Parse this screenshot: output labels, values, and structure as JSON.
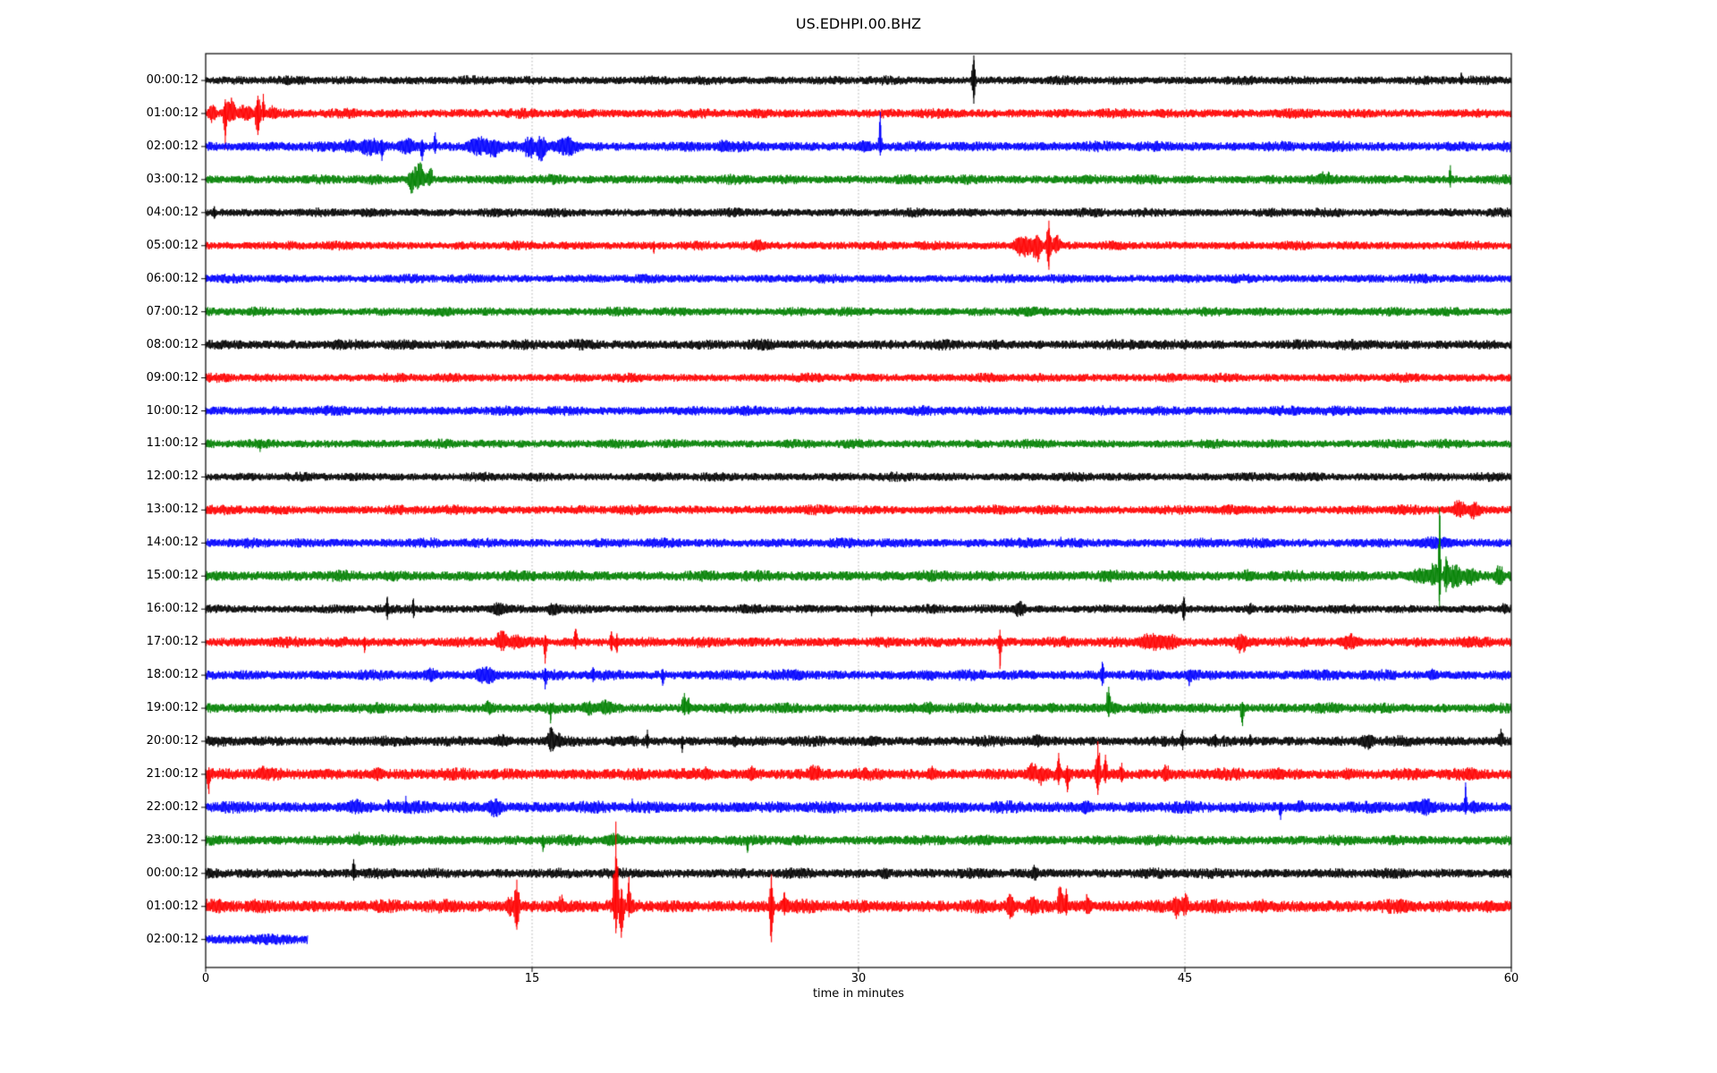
{
  "title": "US.EDHPI.00.BHZ",
  "xlabel": "time in minutes",
  "chart_data": {
    "type": "line",
    "variant": "helicorder-dayplot",
    "station": "US.EDHPI.00.BHZ",
    "x_unit": "minutes",
    "x_range": [
      0,
      60
    ],
    "x_ticks": [
      0,
      15,
      30,
      45,
      60
    ],
    "gridlines_minutes": [
      15,
      30,
      45
    ],
    "grid_color": "#9a9a9a",
    "axis_color": "#000000",
    "trace_colors_cycle": [
      "#000000",
      "#ff0000",
      "#0000ff",
      "#008000"
    ],
    "event_format": [
      "t_minutes",
      "sigma_minutes",
      "up_amplitude_px",
      "down_amplitude_px"
    ],
    "rows": [
      {
        "label": "00:00:12",
        "color": "#000000",
        "noise": 6,
        "end_min": 60,
        "events": [
          [
            35.3,
            0.07,
            28,
            26
          ],
          [
            57.7,
            0.06,
            9,
            5
          ]
        ]
      },
      {
        "label": "01:00:12",
        "color": "#ff0000",
        "noise": 6.5,
        "end_min": 60,
        "events": [
          [
            0.3,
            0.15,
            14,
            12
          ],
          [
            0.9,
            0.06,
            16,
            40
          ],
          [
            1.15,
            0.2,
            18,
            12
          ],
          [
            1.8,
            0.3,
            12,
            10
          ],
          [
            2.4,
            0.1,
            20,
            24
          ],
          [
            2.65,
            0.06,
            22,
            8
          ],
          [
            3.1,
            0.2,
            10,
            8
          ]
        ]
      },
      {
        "label": "02:00:12",
        "color": "#0000ff",
        "noise": 7,
        "end_min": 60,
        "events": [
          [
            6.6,
            0.3,
            9,
            9
          ],
          [
            7.6,
            0.5,
            10,
            12
          ],
          [
            8.1,
            0.1,
            8,
            16
          ],
          [
            9.3,
            0.4,
            10,
            10
          ],
          [
            9.95,
            0.08,
            8,
            16
          ],
          [
            10.55,
            0.06,
            16,
            8
          ],
          [
            12.6,
            0.5,
            12,
            12
          ],
          [
            13.2,
            0.3,
            10,
            14
          ],
          [
            14.9,
            0.25,
            12,
            16
          ],
          [
            15.4,
            0.2,
            14,
            18
          ],
          [
            16.6,
            0.5,
            12,
            12
          ],
          [
            23.8,
            0.3,
            8,
            8
          ],
          [
            30.3,
            0.3,
            8,
            8
          ],
          [
            31.0,
            0.05,
            39,
            10
          ]
        ]
      },
      {
        "label": "03:00:12",
        "color": "#008000",
        "noise": 6.5,
        "end_min": 60,
        "events": [
          [
            9.45,
            0.12,
            14,
            20
          ],
          [
            9.8,
            0.25,
            20,
            12
          ],
          [
            10.3,
            0.12,
            16,
            8
          ],
          [
            51.3,
            0.15,
            10,
            6
          ],
          [
            51.6,
            0.1,
            9,
            5
          ],
          [
            57.2,
            0.05,
            16,
            9
          ]
        ]
      },
      {
        "label": "04:00:12",
        "color": "#000000",
        "noise": 6,
        "end_min": 60,
        "events": [
          [
            0.4,
            0.1,
            7,
            7
          ]
        ]
      },
      {
        "label": "05:00:12",
        "color": "#ff0000",
        "noise": 6,
        "end_min": 60,
        "events": [
          [
            20.6,
            0.05,
            5,
            9
          ],
          [
            25.4,
            0.25,
            8,
            8
          ],
          [
            37.6,
            0.4,
            12,
            14
          ],
          [
            38.2,
            0.2,
            12,
            20
          ],
          [
            38.75,
            0.09,
            28,
            27
          ],
          [
            39.1,
            0.15,
            14,
            10
          ]
        ]
      },
      {
        "label": "06:00:12",
        "color": "#0000ff",
        "noise": 6,
        "end_min": 60,
        "events": []
      },
      {
        "label": "07:00:12",
        "color": "#008000",
        "noise": 6,
        "end_min": 60,
        "events": []
      },
      {
        "label": "08:00:12",
        "color": "#000000",
        "noise": 7,
        "end_min": 60,
        "events": []
      },
      {
        "label": "09:00:12",
        "color": "#ff0000",
        "noise": 6,
        "end_min": 60,
        "events": []
      },
      {
        "label": "10:00:12",
        "color": "#0000ff",
        "noise": 6.5,
        "end_min": 60,
        "events": [
          [
            24.7,
            0.2,
            5,
            5
          ]
        ]
      },
      {
        "label": "11:00:12",
        "color": "#008000",
        "noise": 6,
        "end_min": 60,
        "events": [
          [
            2.5,
            0.05,
            4,
            9
          ]
        ]
      },
      {
        "label": "12:00:12",
        "color": "#000000",
        "noise": 6,
        "end_min": 60,
        "events": []
      },
      {
        "label": "13:00:12",
        "color": "#ff0000",
        "noise": 6.5,
        "end_min": 60,
        "events": [
          [
            47.0,
            0.2,
            6,
            5
          ],
          [
            57.6,
            0.3,
            12,
            10
          ],
          [
            58.3,
            0.25,
            10,
            12
          ]
        ]
      },
      {
        "label": "14:00:12",
        "color": "#0000ff",
        "noise": 6.5,
        "end_min": 60,
        "events": [
          [
            39.3,
            0.1,
            7,
            5
          ],
          [
            56.5,
            0.8,
            8,
            8
          ]
        ]
      },
      {
        "label": "15:00:12",
        "color": "#008000",
        "noise": 7.5,
        "end_min": 60,
        "events": [
          [
            47.9,
            0.3,
            8,
            7
          ],
          [
            55.8,
            0.5,
            10,
            10
          ],
          [
            56.45,
            0.15,
            18,
            14
          ],
          [
            56.7,
            0.045,
            77,
            38
          ],
          [
            57.0,
            0.1,
            22,
            18
          ],
          [
            57.4,
            0.3,
            14,
            16
          ],
          [
            58.1,
            0.3,
            10,
            12
          ],
          [
            59.45,
            0.2,
            13,
            12
          ]
        ]
      },
      {
        "label": "16:00:12",
        "color": "#000000",
        "noise": 6,
        "end_min": 60,
        "events": [
          [
            8.35,
            0.06,
            14,
            12
          ],
          [
            9.55,
            0.06,
            12,
            10
          ],
          [
            13.5,
            0.4,
            8,
            8
          ],
          [
            16.0,
            0.3,
            8,
            9
          ],
          [
            30.6,
            0.05,
            5,
            8
          ],
          [
            37.4,
            0.25,
            10,
            10
          ],
          [
            44.95,
            0.07,
            14,
            13
          ],
          [
            48.0,
            0.2,
            7,
            7
          ],
          [
            59.7,
            0.15,
            8,
            7
          ]
        ]
      },
      {
        "label": "17:00:12",
        "color": "#ff0000",
        "noise": 7,
        "end_min": 60,
        "events": [
          [
            7.3,
            0.06,
            6,
            12
          ],
          [
            13.6,
            0.2,
            17,
            12
          ],
          [
            14.2,
            0.3,
            10,
            10
          ],
          [
            15.6,
            0.06,
            8,
            24
          ],
          [
            17.0,
            0.07,
            15,
            8
          ],
          [
            18.65,
            0.08,
            12,
            10
          ],
          [
            18.9,
            0.08,
            10,
            12
          ],
          [
            36.5,
            0.06,
            14,
            30
          ],
          [
            43.5,
            0.6,
            11,
            11
          ],
          [
            44.3,
            0.4,
            10,
            10
          ],
          [
            47.6,
            0.25,
            10,
            14
          ],
          [
            52.6,
            0.4,
            10,
            10
          ],
          [
            58.2,
            0.3,
            7,
            7
          ]
        ]
      },
      {
        "label": "18:00:12",
        "color": "#0000ff",
        "noise": 7,
        "end_min": 60,
        "events": [
          [
            10.35,
            0.2,
            10,
            8
          ],
          [
            12.9,
            0.45,
            11,
            11
          ],
          [
            15.6,
            0.07,
            8,
            16
          ],
          [
            17.8,
            0.1,
            9,
            8
          ],
          [
            21.0,
            0.07,
            7,
            12
          ],
          [
            27.2,
            0.3,
            7,
            7
          ],
          [
            33.3,
            0.25,
            7,
            7
          ],
          [
            41.2,
            0.08,
            15,
            12
          ],
          [
            45.2,
            0.12,
            8,
            13
          ],
          [
            50.5,
            0.3,
            7,
            6
          ],
          [
            56.4,
            0.2,
            8,
            7
          ]
        ]
      },
      {
        "label": "19:00:12",
        "color": "#008000",
        "noise": 7,
        "end_min": 60,
        "events": [
          [
            13.0,
            0.25,
            9,
            8
          ],
          [
            15.85,
            0.07,
            6,
            17
          ],
          [
            17.6,
            0.3,
            9,
            9
          ],
          [
            18.4,
            0.3,
            10,
            9
          ],
          [
            22.0,
            0.1,
            17,
            8
          ],
          [
            22.2,
            0.1,
            12,
            7
          ],
          [
            26.7,
            0.2,
            7,
            7
          ],
          [
            33.2,
            0.3,
            8,
            8
          ],
          [
            38.9,
            0.2,
            7,
            6
          ],
          [
            41.5,
            0.1,
            24,
            10
          ],
          [
            41.8,
            0.2,
            10,
            8
          ],
          [
            47.65,
            0.08,
            7,
            20
          ],
          [
            52.0,
            0.3,
            6,
            6
          ]
        ]
      },
      {
        "label": "20:00:12",
        "color": "#000000",
        "noise": 7,
        "end_min": 60,
        "events": [
          [
            13.6,
            0.4,
            9,
            8
          ],
          [
            15.9,
            0.15,
            18,
            13
          ],
          [
            16.2,
            0.2,
            10,
            12
          ],
          [
            20.3,
            0.07,
            13,
            8
          ],
          [
            21.9,
            0.06,
            6,
            13
          ],
          [
            24.3,
            0.2,
            7,
            7
          ],
          [
            30.7,
            0.2,
            8,
            7
          ],
          [
            38.2,
            0.25,
            9,
            8
          ],
          [
            44.9,
            0.08,
            13,
            10
          ],
          [
            46.4,
            0.1,
            8,
            7
          ],
          [
            48.0,
            0.1,
            8,
            6
          ],
          [
            53.4,
            0.3,
            9,
            10
          ],
          [
            59.5,
            0.12,
            16,
            8
          ]
        ]
      },
      {
        "label": "21:00:12",
        "color": "#ff0000",
        "noise": 8,
        "end_min": 60,
        "events": [
          [
            0.15,
            0.07,
            8,
            22
          ],
          [
            2.7,
            0.3,
            10,
            8
          ],
          [
            7.9,
            0.25,
            9,
            8
          ],
          [
            23.0,
            0.2,
            9,
            8
          ],
          [
            25.05,
            0.25,
            10,
            9
          ],
          [
            27.9,
            0.15,
            13,
            8
          ],
          [
            28.15,
            0.1,
            10,
            7
          ],
          [
            30.3,
            0.15,
            9,
            7
          ],
          [
            33.4,
            0.2,
            10,
            8
          ],
          [
            38.0,
            0.2,
            15,
            10
          ],
          [
            38.4,
            0.15,
            10,
            14
          ],
          [
            39.2,
            0.08,
            24,
            12
          ],
          [
            39.6,
            0.1,
            10,
            20
          ],
          [
            41.0,
            0.09,
            37,
            23
          ],
          [
            41.35,
            0.07,
            22,
            10
          ],
          [
            42.1,
            0.1,
            13,
            9
          ],
          [
            44.15,
            0.15,
            12,
            10
          ],
          [
            49.3,
            0.3,
            8,
            7
          ],
          [
            52.5,
            0.3,
            8,
            7
          ],
          [
            58.1,
            0.25,
            9,
            8
          ]
        ]
      },
      {
        "label": "22:00:12",
        "color": "#0000ff",
        "noise": 8,
        "end_min": 60,
        "events": [
          [
            6.9,
            0.4,
            10,
            9
          ],
          [
            8.4,
            0.07,
            9,
            6
          ],
          [
            9.2,
            0.06,
            13,
            7
          ],
          [
            13.3,
            0.3,
            11,
            12
          ],
          [
            19.6,
            0.08,
            10,
            6
          ],
          [
            24.6,
            0.3,
            7,
            7
          ],
          [
            40.45,
            0.25,
            9,
            9
          ],
          [
            49.4,
            0.07,
            6,
            14
          ],
          [
            50.3,
            0.2,
            9,
            7
          ],
          [
            56.1,
            0.4,
            11,
            10
          ],
          [
            57.9,
            0.06,
            28,
            8
          ],
          [
            58.3,
            0.2,
            9,
            8
          ]
        ]
      },
      {
        "label": "23:00:12",
        "color": "#008000",
        "noise": 7,
        "end_min": 60,
        "events": [
          [
            7.0,
            0.3,
            10,
            7
          ],
          [
            15.5,
            0.07,
            6,
            13
          ],
          [
            18.7,
            0.4,
            10,
            8
          ],
          [
            24.9,
            0.06,
            5,
            14
          ],
          [
            27.3,
            0.2,
            7,
            6
          ]
        ]
      },
      {
        "label": "00:00:12",
        "color": "#000000",
        "noise": 7,
        "end_min": 60,
        "events": [
          [
            6.8,
            0.07,
            16,
            8
          ],
          [
            31.2,
            0.15,
            8,
            10
          ],
          [
            38.1,
            0.15,
            11,
            10
          ]
        ]
      },
      {
        "label": "01:00:12",
        "color": "#ff0000",
        "noise": 9,
        "end_min": 60,
        "events": [
          [
            0.5,
            0.3,
            10,
            9
          ],
          [
            2.3,
            0.2,
            9,
            8
          ],
          [
            14.0,
            0.2,
            12,
            12
          ],
          [
            14.3,
            0.1,
            30,
            26
          ],
          [
            16.35,
            0.12,
            14,
            12
          ],
          [
            18.85,
            0.08,
            95,
            30
          ],
          [
            19.1,
            0.1,
            20,
            35
          ],
          [
            19.45,
            0.07,
            33,
            12
          ],
          [
            26.0,
            0.07,
            36,
            40
          ],
          [
            26.6,
            0.08,
            16,
            10
          ],
          [
            37.0,
            0.15,
            17,
            18
          ],
          [
            38.0,
            0.2,
            14,
            12
          ],
          [
            39.3,
            0.12,
            30,
            14
          ],
          [
            39.55,
            0.08,
            20,
            10
          ],
          [
            40.55,
            0.15,
            16,
            12
          ],
          [
            44.6,
            0.15,
            14,
            16
          ],
          [
            45.0,
            0.12,
            18,
            12
          ],
          [
            48.5,
            0.3,
            9,
            8
          ],
          [
            55.0,
            0.3,
            8,
            8
          ],
          [
            59.0,
            0.25,
            9,
            8
          ]
        ]
      },
      {
        "label": "02:00:12",
        "color": "#0000ff",
        "noise": 7,
        "end_min": 4.7,
        "events": []
      }
    ]
  }
}
